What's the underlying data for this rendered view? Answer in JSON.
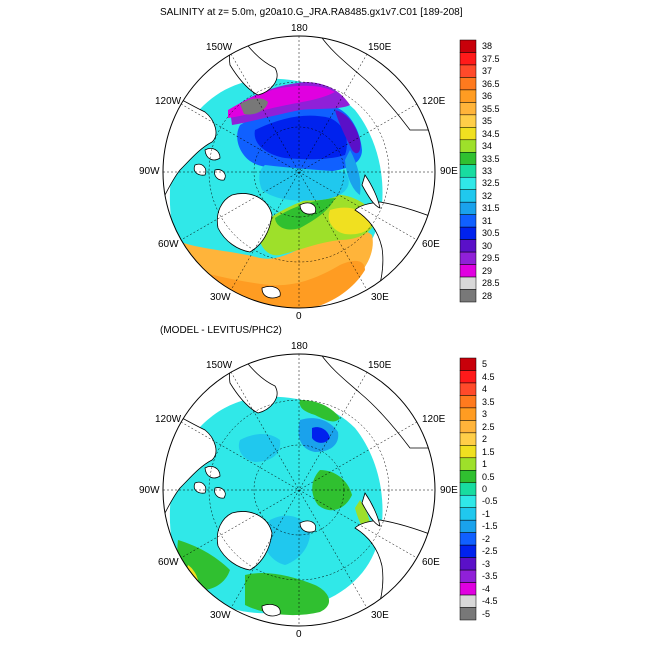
{
  "panels": [
    {
      "title": "SALINITY at z=   5.0m, g20a10.G_JRA.RA8485.gx1v7.C01 [189-208]",
      "lon_labels": {
        "top": "180",
        "bottom": "0",
        "left": "90W",
        "right": "90E",
        "upper_left_1": "150W",
        "upper_left_2": "120W",
        "upper_right_1": "150E",
        "upper_right_2": "120E",
        "lower_left_1": "60W",
        "lower_left_2": "30W",
        "lower_right_1": "60E",
        "lower_right_2": "30E"
      },
      "colorbar": {
        "labels": [
          "38",
          "37.5",
          "37",
          "36.5",
          "36",
          "35.5",
          "35",
          "34.5",
          "34",
          "33.5",
          "33",
          "32.5",
          "32",
          "31.5",
          "31",
          "30.5",
          "30",
          "29.5",
          "29",
          "28.5",
          "28"
        ],
        "colors": [
          "#c8000a",
          "#ff1a1a",
          "#ff4a2a",
          "#ff7a1e",
          "#ff9c22",
          "#ffb43a",
          "#ffce48",
          "#f0e020",
          "#9ee02a",
          "#30c030",
          "#18dca0",
          "#30e8e8",
          "#20c8ee",
          "#1aa2ec",
          "#1060ff",
          "#0022ee",
          "#5a10c8",
          "#9020d8",
          "#e000e0",
          "#d8d8d8",
          "#787878"
        ]
      }
    },
    {
      "title": "(MODEL - LEVITUS/PHC2)",
      "lon_labels": {
        "top": "180",
        "bottom": "0",
        "left": "90W",
        "right": "90E",
        "upper_left_1": "150W",
        "upper_left_2": "120W",
        "upper_right_1": "150E",
        "upper_right_2": "120E",
        "lower_left_1": "60W",
        "lower_left_2": "30W",
        "lower_right_1": "60E",
        "lower_right_2": "30E"
      },
      "colorbar": {
        "labels": [
          "5",
          "4.5",
          "4",
          "3.5",
          "3",
          "2.5",
          "2",
          "1.5",
          "1",
          "0.5",
          "0",
          "-0.5",
          "-1",
          "-1.5",
          "-2",
          "-2.5",
          "-3",
          "-3.5",
          "-4",
          "-4.5",
          "-5"
        ],
        "colors": [
          "#c8000a",
          "#ff1a1a",
          "#ff4a2a",
          "#ff7a1e",
          "#ff9c22",
          "#ffb43a",
          "#ffce48",
          "#f0e020",
          "#9ee02a",
          "#30c030",
          "#18dca0",
          "#30e8e8",
          "#20c8ee",
          "#1aa2ec",
          "#1060ff",
          "#0022ee",
          "#5a10c8",
          "#9020d8",
          "#e000e0",
          "#d8d8d8",
          "#787878"
        ]
      }
    }
  ]
}
